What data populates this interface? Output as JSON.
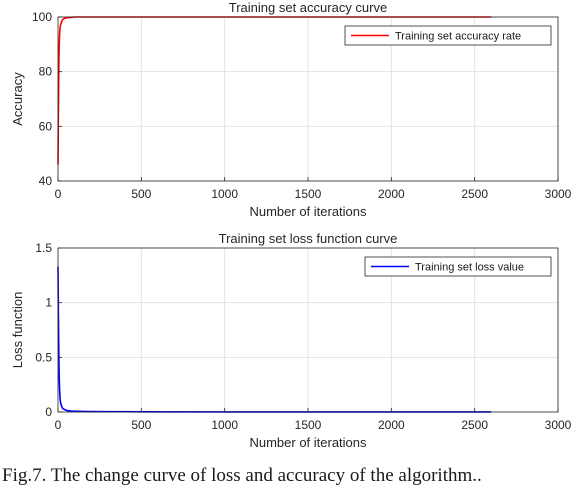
{
  "chart_data": [
    {
      "type": "line",
      "title": "Training set accuracy curve",
      "xlabel": "Number of iterations",
      "ylabel": "Accuracy",
      "xlim": [
        0,
        3000
      ],
      "ylim": [
        40,
        100
      ],
      "xticks": [
        0,
        500,
        1000,
        1500,
        2000,
        2500,
        3000
      ],
      "yticks": [
        40,
        60,
        80,
        100
      ],
      "grid": true,
      "legend_position": "top-right",
      "series": [
        {
          "name": "Training set accuracy rate",
          "color": "#ff0000",
          "x": [
            0,
            2,
            4,
            6,
            8,
            10,
            12,
            15,
            20,
            25,
            30,
            40,
            50,
            60,
            80,
            100,
            150,
            200,
            300,
            500,
            1000,
            1500,
            2000,
            2600
          ],
          "y": [
            46,
            62,
            76,
            86,
            91,
            94,
            96,
            97,
            98,
            98.8,
            99.2,
            99.5,
            99.7,
            99.8,
            99.9,
            100,
            100,
            100,
            100,
            100,
            100,
            100,
            100,
            100
          ]
        }
      ]
    },
    {
      "type": "line",
      "title": "Training set loss function curve",
      "xlabel": "Number of iterations",
      "ylabel": "Loss function",
      "xlim": [
        0,
        3000
      ],
      "ylim": [
        0,
        1.5
      ],
      "xticks": [
        0,
        500,
        1000,
        1500,
        2000,
        2500,
        3000
      ],
      "yticks": [
        0,
        0.5,
        1,
        1.5
      ],
      "grid": true,
      "legend_position": "top-right",
      "series": [
        {
          "name": "Training set loss value",
          "color": "#0000ff",
          "x": [
            0,
            2,
            4,
            6,
            8,
            10,
            12,
            15,
            20,
            25,
            30,
            40,
            50,
            60,
            80,
            100,
            150,
            200,
            300,
            500,
            1000,
            1500,
            2000,
            2600
          ],
          "y": [
            1.33,
            0.95,
            0.65,
            0.42,
            0.28,
            0.19,
            0.13,
            0.09,
            0.06,
            0.04,
            0.03,
            0.022,
            0.016,
            0.012,
            0.009,
            0.007,
            0.005,
            0.004,
            0.003,
            0.002,
            0.001,
            0.001,
            0.001,
            0.001
          ]
        }
      ]
    }
  ],
  "caption": "Fig.7. The change curve of loss and accuracy of the algorithm.."
}
